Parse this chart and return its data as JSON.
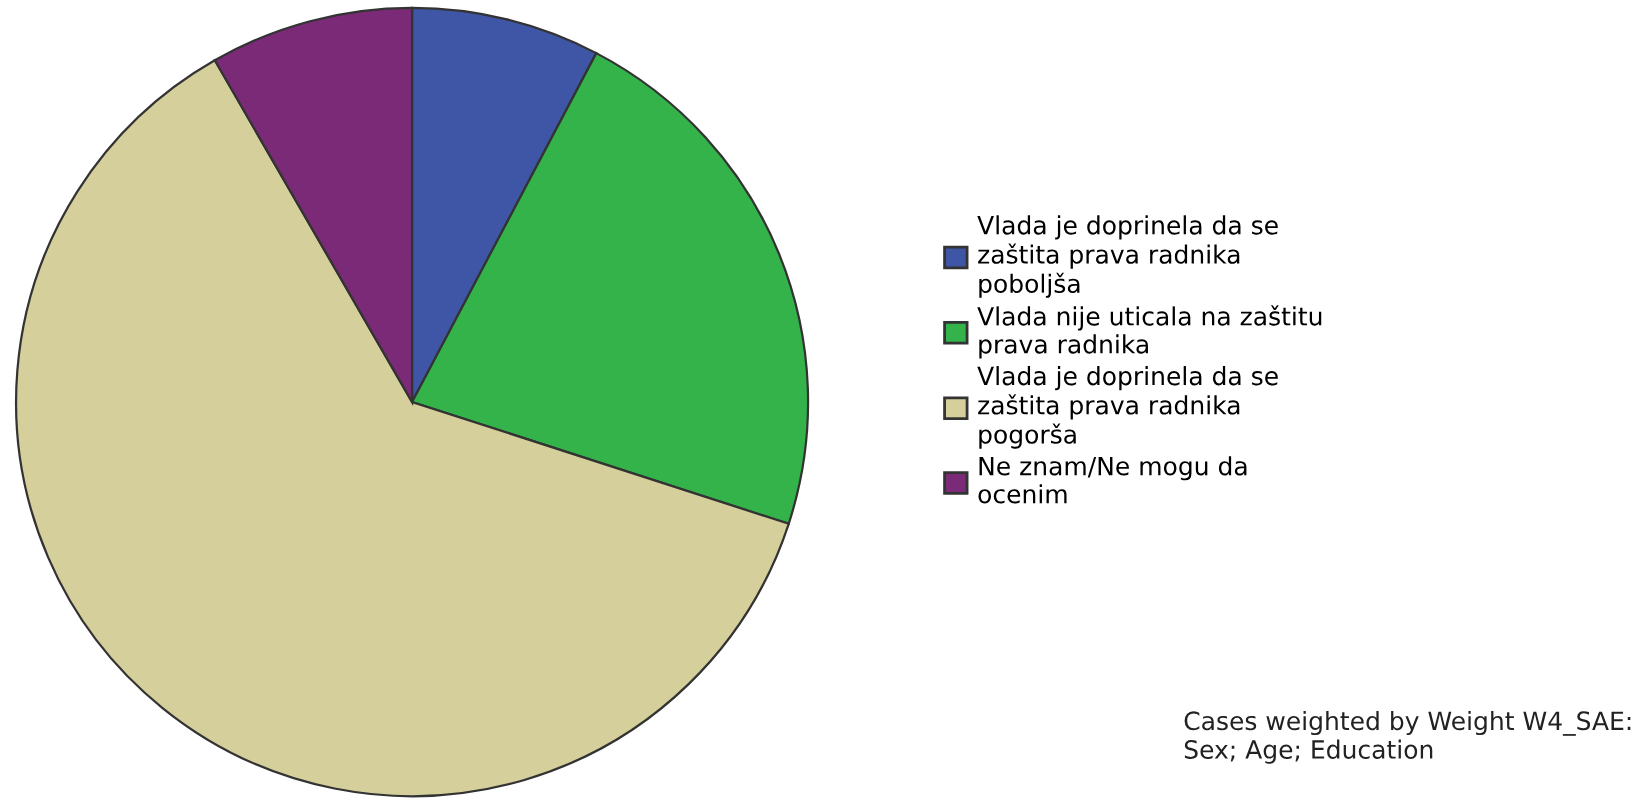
{
  "chart_data": {
    "type": "pie",
    "categories": [
      "Vlada je doprinela da se\nzaštita prava radnika\npoboljša",
      "Vlada nije uticala na zaštitu\nprava radnika",
      "Vlada je doprinela da se\nzaštita prava radnika\npogorša",
      "Ne znam/Ne mogu da\nocenim"
    ],
    "values": [
      7.7,
      22.3,
      61.7,
      8.3
    ],
    "colors": [
      "#3f55a6",
      "#33b34a",
      "#d5d09b",
      "#7b2a78"
    ],
    "legend": "right",
    "annotations": [
      "Cases weighted by Weight W4_SAE:\nSex; Age; Education"
    ]
  }
}
